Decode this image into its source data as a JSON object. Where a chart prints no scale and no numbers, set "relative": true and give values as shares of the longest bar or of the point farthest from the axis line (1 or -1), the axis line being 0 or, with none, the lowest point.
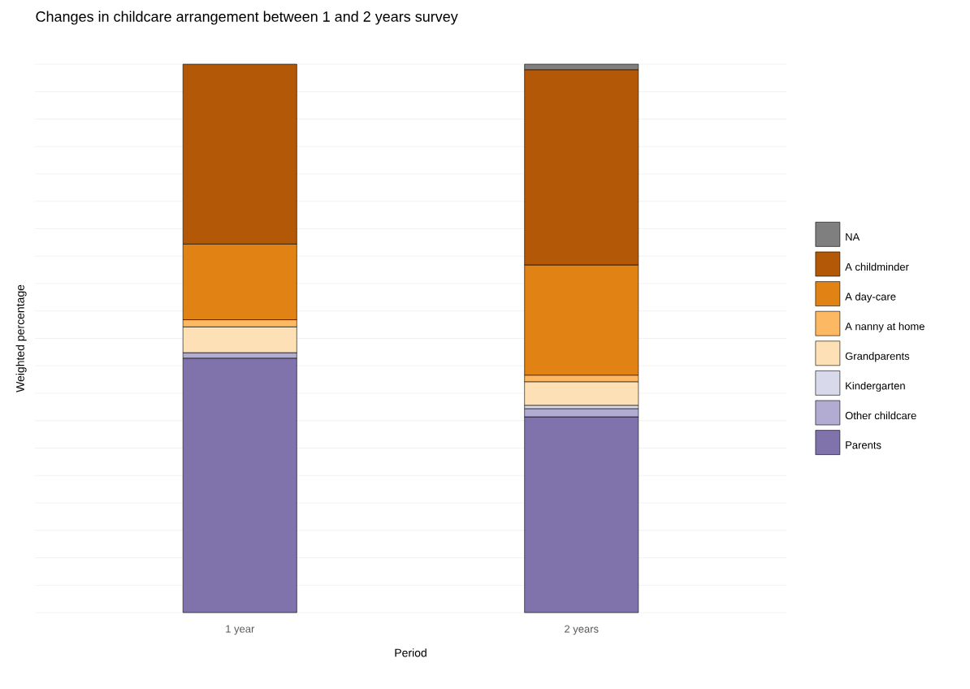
{
  "chart_data": {
    "type": "bar",
    "title": "Changes in childcare arrangement between 1 and 2 years survey",
    "xlabel": "Period",
    "ylabel": "Weighted percentage",
    "categories": [
      "1 year",
      "2 years"
    ],
    "stacked": true,
    "relative": true,
    "grid": true,
    "legend": "right",
    "series": [
      {
        "name": "Parents",
        "color": "#8073ac",
        "values": [
          0.464,
          0.357
        ]
      },
      {
        "name": "Other childcare",
        "color": "#b2abd2",
        "values": [
          0.01,
          0.015
        ]
      },
      {
        "name": "Kindergarten",
        "color": "#d8daeb",
        "values": [
          null,
          0.006
        ]
      },
      {
        "name": "Grandparents",
        "color": "#fee0b6",
        "values": [
          0.047,
          0.043
        ]
      },
      {
        "name": "A nanny at home",
        "color": "#fdb863",
        "values": [
          0.013,
          0.012
        ]
      },
      {
        "name": "A day-care",
        "color": "#e08214",
        "values": [
          0.138,
          0.201
        ]
      },
      {
        "name": "A childminder",
        "color": "#b35806",
        "values": [
          0.328,
          0.356
        ]
      },
      {
        "name": "NA",
        "color": "#7f7f7f",
        "values": [
          null,
          0.01
        ]
      }
    ]
  }
}
